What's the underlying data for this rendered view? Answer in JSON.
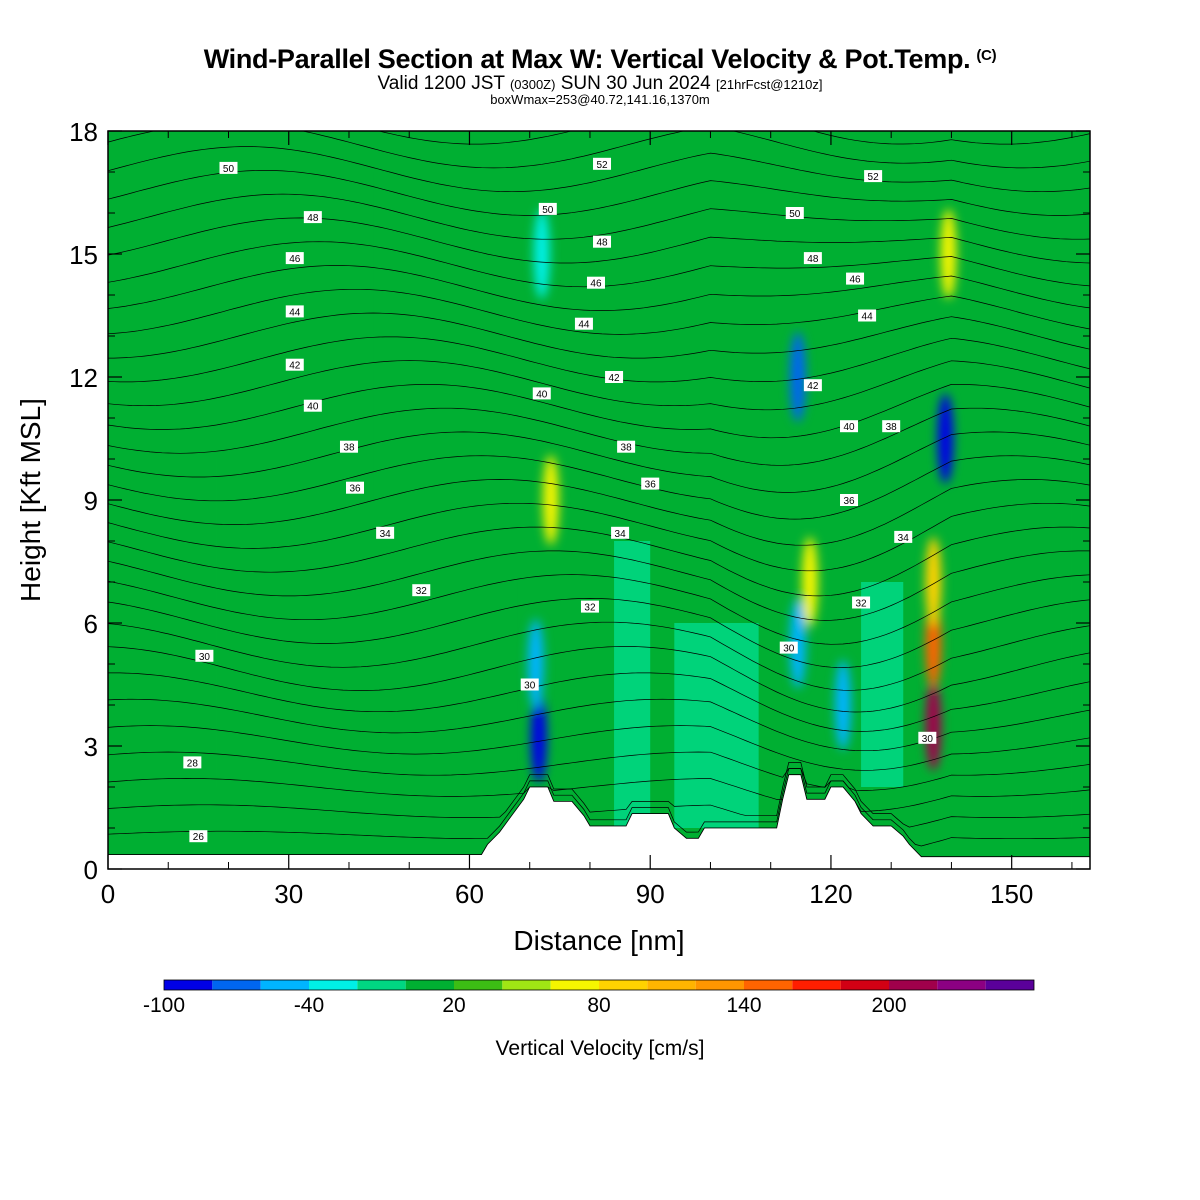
{
  "header": {
    "title": "Wind-Parallel Section at Max W: Vertical Velocity & Pot.Temp.",
    "copyright": "(C)",
    "valid_prefix": "Valid 1200 JST",
    "valid_utc": "(0300Z)",
    "valid_date": "SUN 30 Jun 2024",
    "forecast": "[21hrFcst@1210z]",
    "box_info": "boxWmax=253@40.72,141.16,1370m"
  },
  "chart_data": {
    "type": "heatmap",
    "xlabel": "Distance [nm]",
    "ylabel": "Height [Kft MSL]",
    "xlim": [
      0,
      163
    ],
    "ylim": [
      0,
      18
    ],
    "x_ticks": [
      0,
      30,
      60,
      90,
      120,
      150
    ],
    "y_ticks": [
      0,
      3,
      6,
      9,
      12,
      15,
      18
    ],
    "colorbar": {
      "label": "Vertical Velocity [cm/s]",
      "tick_labels": [
        -100,
        -40,
        20,
        80,
        140,
        200
      ],
      "levels": [
        -100,
        -80,
        -60,
        -40,
        -20,
        0,
        20,
        40,
        60,
        80,
        100,
        120,
        140,
        160,
        180,
        200,
        220,
        240
      ],
      "colors": [
        "#0000e6",
        "#0066f0",
        "#00b4ff",
        "#00f0e6",
        "#00d782",
        "#00af32",
        "#3cbe14",
        "#a0e614",
        "#f5f500",
        "#ffd200",
        "#ffb400",
        "#ff9600",
        "#ff6400",
        "#ff1e00",
        "#d20014",
        "#a0004b",
        "#8c0082",
        "#5a009a"
      ]
    },
    "terrain": [
      [
        0,
        0.35
      ],
      [
        62,
        0.35
      ],
      [
        63,
        0.6
      ],
      [
        65,
        0.9
      ],
      [
        67,
        1.3
      ],
      [
        69,
        1.7
      ],
      [
        70,
        2.0
      ],
      [
        73,
        2.0
      ],
      [
        74,
        1.65
      ],
      [
        77,
        1.65
      ],
      [
        79,
        1.3
      ],
      [
        80,
        1.05
      ],
      [
        86,
        1.05
      ],
      [
        87,
        1.35
      ],
      [
        93,
        1.35
      ],
      [
        94,
        1.0
      ],
      [
        96,
        0.75
      ],
      [
        98,
        0.75
      ],
      [
        99,
        1.0
      ],
      [
        111,
        1.0
      ],
      [
        112,
        1.7
      ],
      [
        113,
        2.3
      ],
      [
        115,
        2.3
      ],
      [
        116,
        1.7
      ],
      [
        119,
        1.7
      ],
      [
        120,
        2.0
      ],
      [
        122,
        2.0
      ],
      [
        124,
        1.65
      ],
      [
        125,
        1.35
      ],
      [
        127,
        1.05
      ],
      [
        130,
        1.05
      ],
      [
        132,
        0.8
      ],
      [
        133,
        0.6
      ],
      [
        135,
        0.3
      ],
      [
        163,
        0.3
      ]
    ],
    "wv_features": [
      {
        "x": 71.5,
        "y": 3.2,
        "value": -100
      },
      {
        "x": 71.0,
        "y": 5.0,
        "value": -60
      },
      {
        "x": 73.5,
        "y": 9.0,
        "value": 60
      },
      {
        "x": 72.0,
        "y": 15.0,
        "value": -40
      },
      {
        "x": 114.5,
        "y": 5.5,
        "value": -60
      },
      {
        "x": 116.5,
        "y": 7.0,
        "value": 60
      },
      {
        "x": 114.5,
        "y": 12.0,
        "value": -80
      },
      {
        "x": 122.0,
        "y": 4.0,
        "value": -60
      },
      {
        "x": 137.0,
        "y": 3.5,
        "value": 200
      },
      {
        "x": 137.0,
        "y": 5.5,
        "value": 140
      },
      {
        "x": 137.0,
        "y": 7.0,
        "value": 80
      },
      {
        "x": 139.0,
        "y": 10.5,
        "value": -100
      },
      {
        "x": 139.5,
        "y": 15.0,
        "value": 60
      }
    ],
    "isotherm_labels": [
      {
        "x": 20,
        "y": 17.1,
        "text": "50"
      },
      {
        "x": 34,
        "y": 15.9,
        "text": "48"
      },
      {
        "x": 31,
        "y": 14.9,
        "text": "46"
      },
      {
        "x": 31,
        "y": 13.6,
        "text": "44"
      },
      {
        "x": 31,
        "y": 12.3,
        "text": "42"
      },
      {
        "x": 34,
        "y": 11.3,
        "text": "40"
      },
      {
        "x": 40,
        "y": 10.3,
        "text": "38"
      },
      {
        "x": 41,
        "y": 9.3,
        "text": "36"
      },
      {
        "x": 46,
        "y": 8.2,
        "text": "34"
      },
      {
        "x": 52,
        "y": 6.8,
        "text": "32"
      },
      {
        "x": 16,
        "y": 5.2,
        "text": "30"
      },
      {
        "x": 14,
        "y": 2.6,
        "text": "28"
      },
      {
        "x": 15,
        "y": 0.8,
        "text": "26"
      },
      {
        "x": 82,
        "y": 17.2,
        "text": "52"
      },
      {
        "x": 73,
        "y": 16.1,
        "text": "50"
      },
      {
        "x": 82,
        "y": 15.3,
        "text": "48"
      },
      {
        "x": 81,
        "y": 14.3,
        "text": "46"
      },
      {
        "x": 79,
        "y": 13.3,
        "text": "44"
      },
      {
        "x": 84,
        "y": 12.0,
        "text": "42"
      },
      {
        "x": 72,
        "y": 11.6,
        "text": "40"
      },
      {
        "x": 86,
        "y": 10.3,
        "text": "38"
      },
      {
        "x": 90,
        "y": 9.4,
        "text": "36"
      },
      {
        "x": 85,
        "y": 8.2,
        "text": "34"
      },
      {
        "x": 80,
        "y": 6.4,
        "text": "32"
      },
      {
        "x": 70,
        "y": 4.5,
        "text": "30"
      },
      {
        "x": 127,
        "y": 16.9,
        "text": "52"
      },
      {
        "x": 114,
        "y": 16.0,
        "text": "50"
      },
      {
        "x": 117,
        "y": 14.9,
        "text": "48"
      },
      {
        "x": 124,
        "y": 14.4,
        "text": "46"
      },
      {
        "x": 126,
        "y": 13.5,
        "text": "44"
      },
      {
        "x": 117,
        "y": 11.8,
        "text": "42"
      },
      {
        "x": 123,
        "y": 10.8,
        "text": "40"
      },
      {
        "x": 130,
        "y": 10.8,
        "text": "38"
      },
      {
        "x": 123,
        "y": 9.0,
        "text": "36"
      },
      {
        "x": 132,
        "y": 8.1,
        "text": "34"
      },
      {
        "x": 125,
        "y": 6.5,
        "text": "32"
      },
      {
        "x": 113,
        "y": 5.4,
        "text": "30"
      },
      {
        "x": 136,
        "y": 3.2,
        "text": "30"
      }
    ]
  }
}
